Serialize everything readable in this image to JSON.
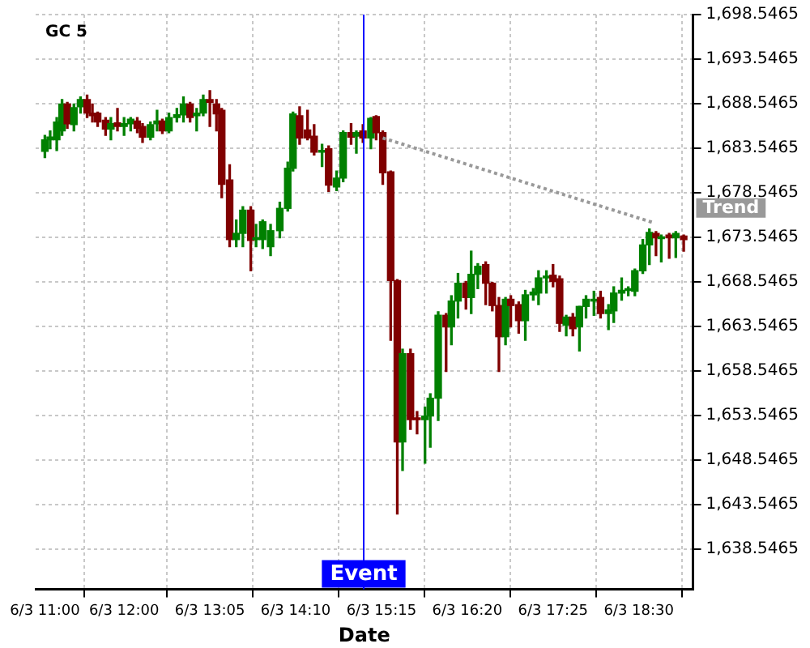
{
  "chart_data": {
    "type": "candlestick",
    "title": "GC 5",
    "xlabel": "Date",
    "x": [
      "--06-03T11:00",
      "--06-03T11:04",
      "--06-03T11:09",
      "--06-03T11:13",
      "--06-03T11:17",
      "--06-03T11:22",
      "--06-03T11:27",
      "--06-03T11:32",
      "--06-03T11:36",
      "--06-03T11:40",
      "--06-03T11:46",
      "--06-03T11:50",
      "--06-03T11:55",
      "--06-03T12:00",
      "--06-03T12:05",
      "--06-03T12:10",
      "--06-03T12:14",
      "--06-03T12:20",
      "--06-03T12:25",
      "--06-03T12:29",
      "--06-03T12:34",
      "--06-03T12:40",
      "--06-03T12:45",
      "--06-03T12:50",
      "--06-03T12:55",
      "--06-03T13:00",
      "--06-03T13:05",
      "--06-03T13:10",
      "--06-03T13:14",
      "--06-03T13:20",
      "--06-03T13:25",
      "--06-03T13:30",
      "--06-03T13:36",
      "--06-03T13:40",
      "--06-03T13:45",
      "--06-03T13:51",
      "--06-03T13:58",
      "--06-03T14:04",
      "--06-03T14:08",
      "--06-03T14:13",
      "--06-03T14:19",
      "--06-03T14:24",
      "--06-03T14:30",
      "--06-03T14:35",
      "--06-03T14:41",
      "--06-03T14:46",
      "--06-03T14:52",
      "--06-03T14:56",
      "--06-03T15:01",
      "--06-03T15:07",
      "--06-03T15:11",
      "--06-03T15:16",
      "--06-03T15:22",
      "--06-03T15:27",
      "--06-03T15:31",
      "--06-03T15:37",
      "--06-03T15:42",
      "--06-03T15:48",
      "--06-03T15:52",
      "--06-03T15:58",
      "--06-03T16:04",
      "--06-03T16:08",
      "--06-03T16:13",
      "--06-03T16:19",
      "--06-03T16:23",
      "--06-03T16:28",
      "--06-03T16:34",
      "--06-03T16:39",
      "--06-03T16:44",
      "--06-03T16:49",
      "--06-03T16:53",
      "--06-03T16:59",
      "--06-03T17:04",
      "--06-03T17:10",
      "--06-03T17:14",
      "--06-03T17:20",
      "--06-03T17:25",
      "--06-03T17:30",
      "--06-03T17:35",
      "--06-03T17:40",
      "--06-03T17:45",
      "--06-03T17:50",
      "--06-03T17:56",
      "--06-03T18:01",
      "--06-03T18:07",
      "--06-03T18:11",
      "--06-03T18:17",
      "--06-03T18:22",
      "--06-03T18:27",
      "--06-03T18:33",
      "--06-03T18:38",
      "--06-03T18:43",
      "--06-03T18:47",
      "--06-03T18:53",
      "--06-03T18:58",
      "--06-03T19:04"
    ],
    "ohlc": [
      [
        1683.2,
        1685,
        1682.5,
        1684.5
      ],
      [
        1684.5,
        1685.5,
        1683.5,
        1684.8
      ],
      [
        1684.5,
        1687,
        1683.3,
        1686.5
      ],
      [
        1685.5,
        1689,
        1685,
        1688.5
      ],
      [
        1688.5,
        1688.7,
        1685.8,
        1686.3
      ],
      [
        1686.2,
        1688.5,
        1685.5,
        1688.1
      ],
      [
        1688.2,
        1689.3,
        1687.5,
        1689
      ],
      [
        1689,
        1689.5,
        1687,
        1687.5
      ],
      [
        1687.5,
        1688.5,
        1686.5,
        1687.2
      ],
      [
        1687.5,
        1687.6,
        1686,
        1686.5
      ],
      [
        1686.7,
        1687,
        1685,
        1685.7
      ],
      [
        1685.7,
        1687,
        1684.5,
        1686.3
      ],
      [
        1686.4,
        1688,
        1685.5,
        1686
      ],
      [
        1686,
        1687,
        1685,
        1686.3
      ],
      [
        1686.3,
        1687,
        1685.5,
        1686.8
      ],
      [
        1686.6,
        1687,
        1685.3,
        1685.8
      ],
      [
        1686,
        1686.3,
        1684.2,
        1684.8
      ],
      [
        1684.8,
        1686.5,
        1684.5,
        1686.2
      ],
      [
        1686.3,
        1687.8,
        1685.5,
        1686.6
      ],
      [
        1686.6,
        1686.8,
        1685.2,
        1685.5
      ],
      [
        1685.5,
        1687.5,
        1685.3,
        1687
      ],
      [
        1687,
        1688,
        1686.5,
        1687.3
      ],
      [
        1687.3,
        1689.3,
        1686.5,
        1688.5
      ],
      [
        1688.5,
        1688.7,
        1686.5,
        1687
      ],
      [
        1687.2,
        1688,
        1685.5,
        1687.5
      ],
      [
        1687.5,
        1689.5,
        1687.2,
        1689
      ],
      [
        1689,
        1690,
        1686,
        1688.7
      ],
      [
        1688.5,
        1689,
        1685.5,
        1687.4
      ],
      [
        1687.8,
        1688,
        1678,
        1679.5
      ],
      [
        1680,
        1681.7,
        1672.5,
        1673.3
      ],
      [
        1673.3,
        1675.5,
        1672.5,
        1674
      ],
      [
        1674,
        1677,
        1672.5,
        1676.6
      ],
      [
        1676.6,
        1677,
        1669.8,
        1673.2
      ],
      [
        1673.3,
        1675,
        1672.5,
        1673.5
      ],
      [
        1673.3,
        1675.5,
        1672.3,
        1675.3
      ],
      [
        1672.5,
        1675,
        1671.5,
        1674.3
      ],
      [
        1674.3,
        1677.5,
        1673.5,
        1676.8
      ],
      [
        1676.8,
        1682,
        1676.5,
        1681.3
      ],
      [
        1681.3,
        1687.6,
        1681,
        1687.4
      ],
      [
        1687.2,
        1688.2,
        1684,
        1684.7
      ],
      [
        1685.6,
        1687.8,
        1684.5,
        1684.7
      ],
      [
        1684.9,
        1686.2,
        1682.8,
        1683.1
      ],
      [
        1683.1,
        1684,
        1681.5,
        1683.3
      ],
      [
        1683.5,
        1683.8,
        1678.7,
        1679.4
      ],
      [
        1679.2,
        1681,
        1678.8,
        1680.2
      ],
      [
        1680.2,
        1685.5,
        1679.8,
        1685.3
      ],
      [
        1685.3,
        1686.3,
        1684,
        1684.8
      ],
      [
        1684.9,
        1685.5,
        1683,
        1685.3
      ],
      [
        1685.5,
        1686.2,
        1684.2,
        1684.7
      ],
      [
        1684.7,
        1687,
        1683.5,
        1686.9
      ],
      [
        1687.1,
        1687.2,
        1684.5,
        1685.3
      ],
      [
        1685.3,
        1685.5,
        1679.5,
        1680.8
      ],
      [
        1680.9,
        1681,
        1662,
        1668.7
      ],
      [
        1668.7,
        1668.8,
        1642.5,
        1650.6
      ],
      [
        1650.6,
        1661,
        1647.4,
        1660.5
      ],
      [
        1660.5,
        1661,
        1652,
        1653.1
      ],
      [
        1653.3,
        1654,
        1651.5,
        1653.1
      ],
      [
        1653.1,
        1654.5,
        1648.2,
        1653.5
      ],
      [
        1653.5,
        1656,
        1650,
        1655.5
      ],
      [
        1655.5,
        1665.2,
        1653,
        1664.8
      ],
      [
        1664.8,
        1665,
        1658.5,
        1663.5
      ],
      [
        1663.5,
        1667,
        1661.5,
        1666.4
      ],
      [
        1666.4,
        1669.5,
        1664.5,
        1668.4
      ],
      [
        1668.4,
        1668.6,
        1665.5,
        1666.8
      ],
      [
        1666.8,
        1672,
        1665,
        1669.4
      ],
      [
        1669.4,
        1670.6,
        1667.8,
        1670.3
      ],
      [
        1670.5,
        1670.8,
        1666,
        1668.4
      ],
      [
        1668.4,
        1668.5,
        1665.3,
        1665.9
      ],
      [
        1665.9,
        1666.8,
        1658.5,
        1662.4
      ],
      [
        1662.4,
        1666.8,
        1661.5,
        1666.6
      ],
      [
        1666.6,
        1667,
        1663.5,
        1665.9
      ],
      [
        1666,
        1666.3,
        1662.8,
        1664.2
      ],
      [
        1664.2,
        1667.6,
        1662,
        1667.1
      ],
      [
        1667.1,
        1667.8,
        1666.5,
        1667.4
      ],
      [
        1667.3,
        1669.8,
        1666,
        1669
      ],
      [
        1669,
        1669.8,
        1667.3,
        1669.2
      ],
      [
        1669.3,
        1670.5,
        1668,
        1668.6
      ],
      [
        1668.9,
        1669.2,
        1663,
        1663.9
      ],
      [
        1663.7,
        1664.8,
        1662.5,
        1664.6
      ],
      [
        1664.6,
        1665,
        1662.5,
        1663.3
      ],
      [
        1663.5,
        1665.8,
        1660.8,
        1665.8
      ],
      [
        1665.8,
        1667,
        1664.5,
        1666.6
      ],
      [
        1666.4,
        1667.5,
        1664.8,
        1666.6
      ],
      [
        1666.8,
        1667.5,
        1664.5,
        1665
      ],
      [
        1665,
        1666,
        1663.2,
        1665.4
      ],
      [
        1665.3,
        1668,
        1664,
        1667.3
      ],
      [
        1667.3,
        1669,
        1666.5,
        1667.6
      ],
      [
        1667.6,
        1668,
        1667,
        1667.7
      ],
      [
        1667.5,
        1670,
        1667,
        1669.8
      ],
      [
        1669.8,
        1673.3,
        1669.5,
        1672.7
      ],
      [
        1672.7,
        1674.5,
        1670.5,
        1674.1
      ],
      [
        1674,
        1674.2,
        1671.5,
        1673.5
      ],
      [
        1673.4,
        1673.8,
        1670.8,
        1673.6
      ],
      [
        1673.8,
        1674,
        1671.2,
        1673.5
      ],
      [
        1673.5,
        1674.2,
        1671.3,
        1674
      ],
      [
        1673.7,
        1673.8,
        1672,
        1673.3
      ]
    ],
    "colors": [
      "#008000",
      "#008000",
      "#008000",
      "#008000",
      "#800000",
      "#008000",
      "#008000",
      "#800000",
      "#800000",
      "#800000",
      "#800000",
      "#008000",
      "#800000",
      "#008000",
      "#008000",
      "#800000",
      "#800000",
      "#008000",
      "#008000",
      "#800000",
      "#008000",
      "#008000",
      "#008000",
      "#800000",
      "#008000",
      "#008000",
      "#800000",
      "#800000",
      "#800000",
      "#800000",
      "#008000",
      "#008000",
      "#800000",
      "#008000",
      "#008000",
      "#008000",
      "#008000",
      "#008000",
      "#008000",
      "#800000",
      "#800000",
      "#800000",
      "#008000",
      "#800000",
      "#008000",
      "#008000",
      "#800000",
      "#008000",
      "#800000",
      "#008000",
      "#800000",
      "#800000",
      "#800000",
      "#800000",
      "#008000",
      "#800000",
      "#800000",
      "#008000",
      "#008000",
      "#008000",
      "#800000",
      "#008000",
      "#008000",
      "#800000",
      "#008000",
      "#008000",
      "#800000",
      "#800000",
      "#800000",
      "#008000",
      "#800000",
      "#800000",
      "#008000",
      "#008000",
      "#008000",
      "#008000",
      "#800000",
      "#800000",
      "#008000",
      "#800000",
      "#008000",
      "#008000",
      "#008000",
      "#800000",
      "#008000",
      "#008000",
      "#008000",
      "#008000",
      "#008000",
      "#008000",
      "#008000",
      "#800000",
      "#008000",
      "#800000",
      "#008000",
      "#800000"
    ],
    "series": [
      {
        "type": "line",
        "name": "Trend",
        "color": "#999999",
        "line_style": "dotted",
        "marker": "none",
        "x": [
          "--06-03T15:16",
          "--06-03T18:41"
        ],
        "values": [
          1684.7,
          1675.2
        ]
      }
    ],
    "ref_lines": [
      {
        "axis": "x",
        "value": "--06-03T15:01",
        "label": "Event",
        "color": "#0000ff"
      }
    ],
    "xlim": [
      "--06-03T10:53",
      "--06-03T19:11"
    ],
    "xticks": [
      {
        "value": "--06-03T11:00",
        "label": "6/3 11:00"
      },
      {
        "value": "--06-03T12:00",
        "label": "6/3 12:00"
      },
      {
        "value": "--06-03T13:05",
        "label": "6/3 13:05"
      },
      {
        "value": "--06-03T14:10",
        "label": "6/3 14:10"
      },
      {
        "value": "--06-03T15:15",
        "label": "6/3 15:15"
      },
      {
        "value": "--06-03T16:20",
        "label": "6/3 16:20"
      },
      {
        "value": "--06-03T17:25",
        "label": "6/3 17:25"
      },
      {
        "value": "--06-03T18:30",
        "label": "6/3 18:30"
      }
    ],
    "ylim": [
      1634.05,
      1698.5465
    ],
    "yticks": [
      {
        "value": 1638.5465,
        "label": "1,638.5465"
      },
      {
        "value": 1643.5465,
        "label": "1,643.5465"
      },
      {
        "value": 1648.5465,
        "label": "1,648.5465"
      },
      {
        "value": 1653.5465,
        "label": "1,653.5465"
      },
      {
        "value": 1658.5465,
        "label": "1,658.5465"
      },
      {
        "value": 1663.5465,
        "label": "1,663.5465"
      },
      {
        "value": 1668.5465,
        "label": "1,668.5465"
      },
      {
        "value": 1673.5465,
        "label": "1,673.5465"
      },
      {
        "value": 1678.5465,
        "label": "1,678.5465"
      },
      {
        "value": 1683.5465,
        "label": "1,683.5465"
      },
      {
        "value": 1688.5465,
        "label": "1,688.5465"
      },
      {
        "value": 1693.5465,
        "label": "1,693.5465"
      },
      {
        "value": 1698.5465,
        "label": "1,698.5465"
      }
    ],
    "grid": true,
    "legend": false
  }
}
